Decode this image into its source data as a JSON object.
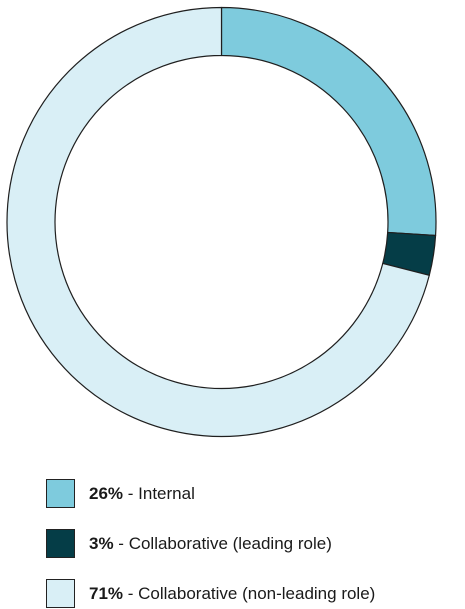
{
  "chart_data": {
    "type": "pie",
    "style": "donut",
    "legend_position": "bottom",
    "slices": [
      {
        "label": "Internal",
        "value": 26,
        "value_label": "26%",
        "color": "#7ecbdd"
      },
      {
        "label": "Collaborative (leading role)",
        "value": 3,
        "value_label": "3%",
        "color": "#053d47"
      },
      {
        "label": "Collaborative (non-leading role)",
        "value": 71,
        "value_label": "71%",
        "color": "#d9eff6"
      }
    ]
  },
  "legend": {
    "separator": " - ",
    "items": [
      {
        "value_label": "26%",
        "label": "Internal",
        "color": "#7ecbdd"
      },
      {
        "value_label": "3%",
        "label": "Collaborative (leading role)",
        "color": "#053d47"
      },
      {
        "value_label": "71%",
        "label": "Collaborative (non-leading role)",
        "color": "#d9eff6"
      }
    ]
  }
}
